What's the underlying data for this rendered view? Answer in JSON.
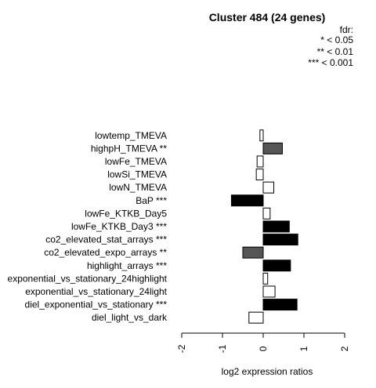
{
  "chart_data": {
    "type": "bar",
    "orientation": "horizontal",
    "title": "Cluster 484 (24 genes)",
    "xlabel": "log2 expression ratios",
    "ylabel": "",
    "xlim": [
      -2,
      2
    ],
    "x_ticks": [
      "-2",
      "-1",
      "0",
      "1",
      "2"
    ],
    "legend": {
      "position": "top-right",
      "title": "fdr:",
      "entries": [
        "* < 0.05",
        "** < 0.01",
        "*** < 0.001"
      ]
    },
    "categories": [
      "lowtemp_TMEVA",
      "highpH_TMEVA **",
      "lowFe_TMEVA",
      "lowSi_TMEVA",
      "lowN_TMEVA",
      "BaP ***",
      "lowFe_KTKB_Day5",
      "lowFe_KTKB_Day3 ***",
      "co2_elevated_stat_arrays ***",
      "co2_elevated_expo_arrays **",
      "highlight_arrays ***",
      "exponential_vs_stationary_24highlight",
      "exponential_vs_stationary_24light",
      "diel_exponential_vs_stationary ***",
      "diel_light_vs_dark"
    ],
    "values": [
      -0.08,
      0.47,
      -0.15,
      -0.17,
      0.26,
      -0.78,
      0.17,
      0.64,
      0.85,
      -0.5,
      0.67,
      0.11,
      0.29,
      0.83,
      -0.35
    ],
    "significance": [
      "",
      "**",
      "",
      "",
      "",
      "***",
      "",
      "***",
      "***",
      "**",
      "***",
      "",
      "",
      "***",
      ""
    ],
    "colors": {
      "***": "#000000",
      "**": "#555555",
      "*": "#aaaaaa",
      "": "#ffffff"
    },
    "grid": false
  }
}
